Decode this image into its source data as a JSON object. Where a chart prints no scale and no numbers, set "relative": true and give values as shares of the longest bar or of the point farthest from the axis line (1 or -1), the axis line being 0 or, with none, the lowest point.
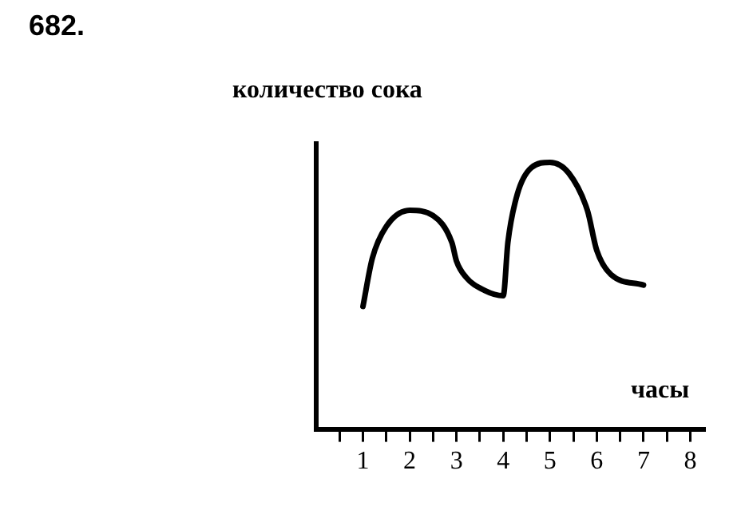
{
  "chart_data": {
    "type": "line",
    "relative": true,
    "xlabel": "часы",
    "ylabel": "количество сока",
    "annotations": [
      "682."
    ],
    "color": "#000000",
    "marker": "none",
    "line_style": "solid",
    "x": [
      1.0,
      1.2,
      1.5,
      2.0,
      2.5,
      2.9,
      3.0,
      3.2,
      3.6,
      4.0,
      4.1,
      4.3,
      4.6,
      5.0,
      5.4,
      5.8,
      6.0,
      6.3,
      7.0
    ],
    "values": [
      0.46,
      0.64,
      0.76,
      0.82,
      0.8,
      0.7,
      0.63,
      0.57,
      0.52,
      0.5,
      0.7,
      0.88,
      0.98,
      1.0,
      0.96,
      0.82,
      0.67,
      0.58,
      0.54
    ],
    "xlim": [
      0,
      8.3
    ],
    "xticks": [
      {
        "value": 0.5,
        "label": null
      },
      1,
      {
        "value": 1.5,
        "label": null
      },
      2,
      {
        "value": 2.5,
        "label": null
      },
      3,
      {
        "value": 3.5,
        "label": null
      },
      4,
      {
        "value": 4.5,
        "label": null
      },
      5,
      {
        "value": 5.5,
        "label": null
      },
      6,
      {
        "value": 6.5,
        "label": null
      },
      7,
      {
        "value": 7.5,
        "label": null
      },
      8
    ]
  }
}
